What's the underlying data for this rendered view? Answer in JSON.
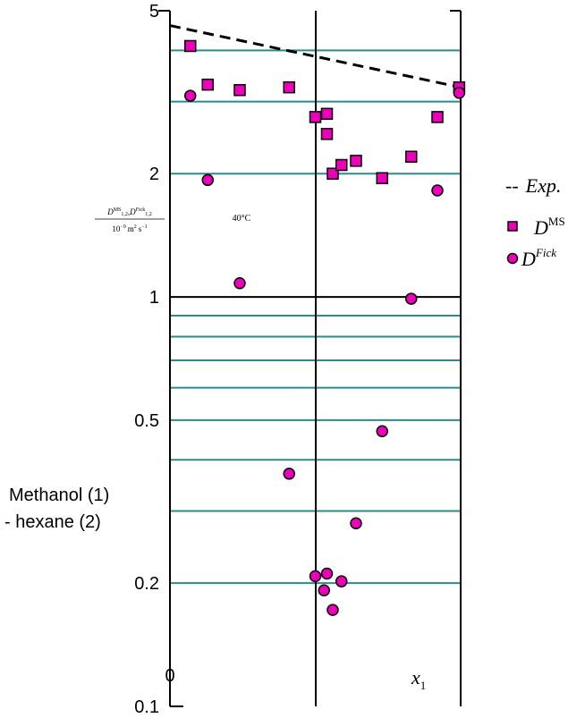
{
  "chart_data": {
    "type": "scatter",
    "y_scale": "log",
    "ylim": [
      0.1,
      5
    ],
    "xlim": [
      0,
      1
    ],
    "yticks": [
      "0.1",
      "0.2",
      "0.5",
      "1",
      "2",
      "5"
    ],
    "xticks": [
      "0"
    ],
    "xlabel_main": "x",
    "xlabel_sub": "1",
    "ylabel": {
      "d_ms_base": "D",
      "d_ms_sup": "MS",
      "d_ms_sub": "1,2",
      "comma": ",",
      "d_fick_base": "D",
      "d_fick_sup": "Fick",
      "d_fick_sub": "1,2",
      "den_coeff": "10",
      "den_exp": "−9",
      "den_unit_m": "m",
      "den_unit_m_exp": "2",
      "den_unit_s": "s",
      "den_unit_s_exp": "−1"
    },
    "temperature_label": "40°C",
    "system_label_line1": "Methanol (1)",
    "system_label_line2": "- hexane (2)",
    "legend": {
      "exp_prefix": "--",
      "exp_text": "Exp.",
      "ms_base": "D",
      "ms_sup": "MS",
      "fick_base": "D",
      "fick_sup": "Fick"
    },
    "colors": {
      "marker_fill": "#ee00bb",
      "marker_stroke": "#000000",
      "gridline": "#2e8b8b",
      "axis": "#000000"
    },
    "series": [
      {
        "kind": "Exp",
        "style": "dashed-line",
        "points": [
          [
            0.0,
            4.6
          ],
          [
            1.0,
            3.25
          ]
        ]
      },
      {
        "kind": "D_MS",
        "marker": "square",
        "points": [
          [
            0.07,
            4.1
          ],
          [
            0.13,
            3.3
          ],
          [
            0.24,
            3.2
          ],
          [
            0.41,
            3.25
          ],
          [
            0.5,
            2.75
          ],
          [
            0.54,
            2.8
          ],
          [
            0.54,
            2.5
          ],
          [
            0.56,
            2.0
          ],
          [
            0.59,
            2.1
          ],
          [
            0.64,
            2.15
          ],
          [
            0.73,
            1.95
          ],
          [
            0.83,
            2.2
          ],
          [
            0.92,
            2.75
          ],
          [
            0.995,
            3.25
          ]
        ]
      },
      {
        "kind": "D_Fick",
        "marker": "circle",
        "points": [
          [
            0.07,
            3.1
          ],
          [
            0.13,
            1.93
          ],
          [
            0.24,
            1.08
          ],
          [
            0.41,
            0.37
          ],
          [
            0.5,
            0.208
          ],
          [
            0.54,
            0.211
          ],
          [
            0.53,
            0.192
          ],
          [
            0.56,
            0.172
          ],
          [
            0.59,
            0.202
          ],
          [
            0.64,
            0.28
          ],
          [
            0.73,
            0.47
          ],
          [
            0.83,
            0.99
          ],
          [
            0.92,
            1.82
          ],
          [
            0.995,
            3.15
          ]
        ]
      }
    ]
  }
}
